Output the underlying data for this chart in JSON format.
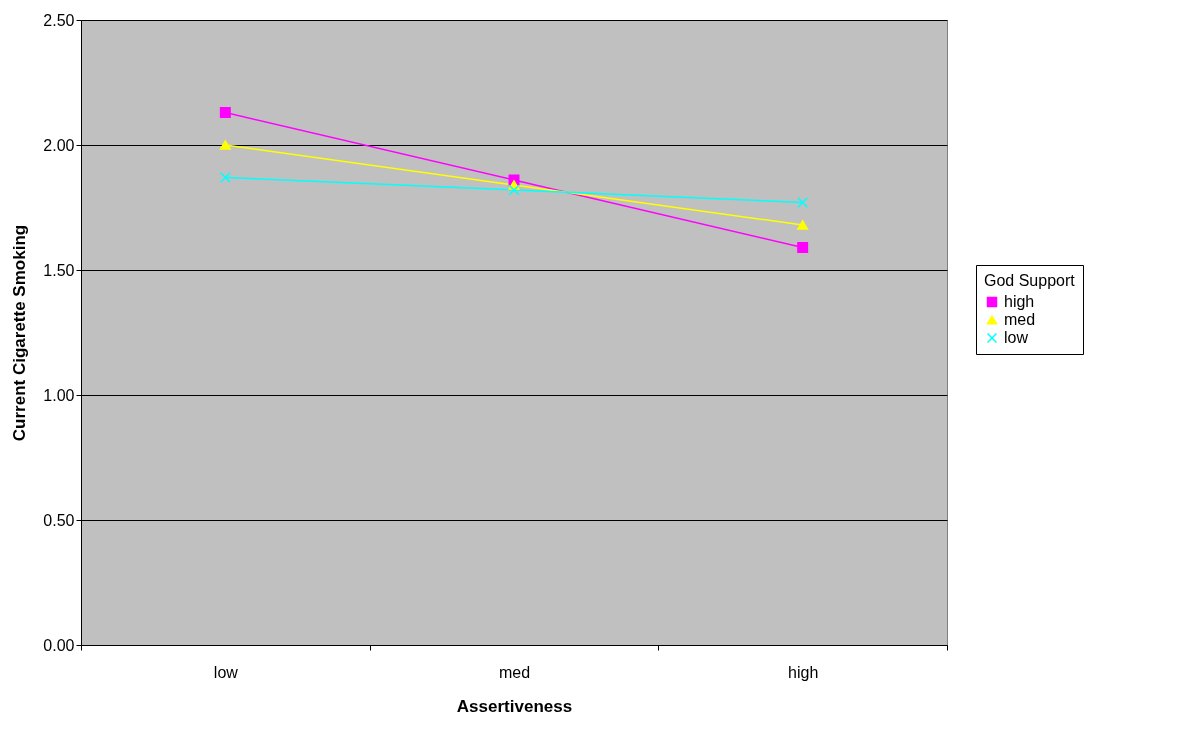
{
  "chart_data": {
    "type": "line",
    "xlabel": "Assertiveness",
    "ylabel": "Current Cigarette Smoking",
    "legend_title": "God Support",
    "categories": [
      "low",
      "med",
      "high"
    ],
    "ylim": [
      0,
      2.5
    ],
    "yticks": [
      {
        "value": 0,
        "label": "0.00"
      },
      {
        "value": 0.5,
        "label": "0.50"
      },
      {
        "value": 1,
        "label": "1.00"
      },
      {
        "value": 1.5,
        "label": "1.50"
      },
      {
        "value": 2,
        "label": "2.00"
      },
      {
        "value": 2.5,
        "label": "2.50"
      }
    ],
    "grid": "y",
    "legend": "right",
    "line_style": "solid",
    "series": [
      {
        "name": "high",
        "color": "#ff00ff",
        "marker": "square",
        "values": [
          2.13,
          1.86,
          1.59
        ]
      },
      {
        "name": "med",
        "color": "#ffff00",
        "marker": "triangle",
        "values": [
          2.0,
          1.84,
          1.68
        ]
      },
      {
        "name": "low",
        "color": "#00ffff",
        "marker": "cross",
        "values": [
          1.87,
          1.82,
          1.77
        ]
      }
    ]
  }
}
